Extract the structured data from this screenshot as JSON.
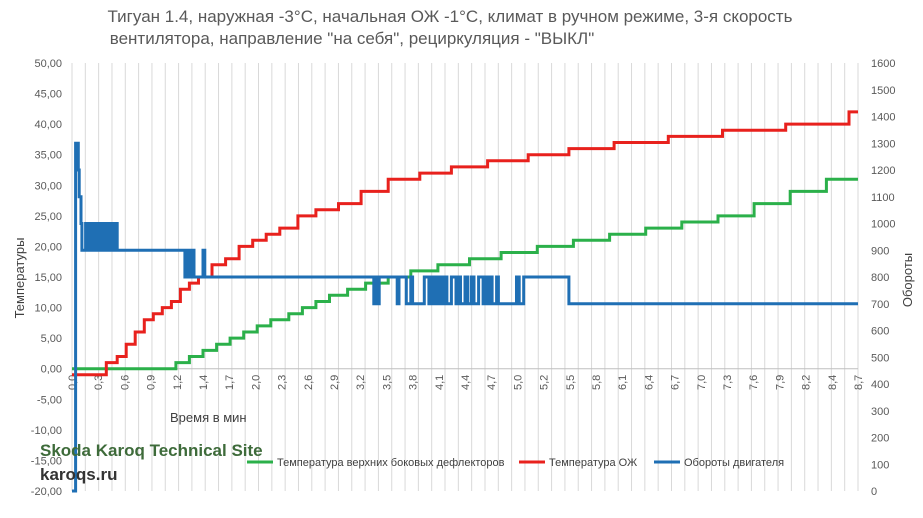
{
  "chart_data": {
    "type": "line",
    "title_line1": "Тигуан 1.4, наружная -3°С, начальная ОЖ -1°С, климат  в ручном режиме, 3-я скорость",
    "title_line2": "вентилятора, направление \"на себя\", рециркуляция - \"ВЫКЛ\"",
    "xlabel": "Время в мин",
    "ylabel_left": "Температуры",
    "ylabel_right": "Обороты",
    "xlim": [
      0.0,
      8.7
    ],
    "ylim_left": [
      -20,
      50
    ],
    "ylim_right": [
      0,
      1600
    ],
    "x_ticks": [
      "0,0",
      "0,1",
      "0,3",
      "0,4",
      "0,6",
      "0,8",
      "0,9",
      "1,0",
      "1,2",
      "1,3",
      "1,4",
      "1,6",
      "1,7",
      "1,9",
      "2,0",
      "2,2",
      "2,3",
      "2,4",
      "2,6",
      "2,7",
      "2,9",
      "3,0",
      "3,2",
      "3,3",
      "3,4",
      "3,6",
      "3,8",
      "3,9",
      "4,0",
      "4,2",
      "4,3",
      "4,4",
      "4,6",
      "4,7",
      "4,9",
      "5,0",
      "5,2",
      "5,4",
      "5,5",
      "5,7",
      "5,8",
      "6,0",
      "6,1",
      "6,2",
      "6,4",
      "6,5",
      "6,7",
      "6,8",
      "7,0",
      "7,1",
      "7,3",
      "7,4",
      "7,6",
      "7,8",
      "7,9",
      "8,1",
      "8,2",
      "8,4",
      "8,5",
      "8,7"
    ],
    "x_tick_labels": [
      "0,0",
      "0,3",
      "0,6",
      "0,9",
      "1,2",
      "1,4",
      "1,7",
      "2,0",
      "2,3",
      "2,6",
      "2,9",
      "3,2",
      "3,5",
      "3,8",
      "4,1",
      "4,4",
      "4,7",
      "5,0",
      "5,2",
      "5,5",
      "5,8",
      "6,1",
      "6,4",
      "6,7",
      "7,0",
      "7,3",
      "7,6",
      "7,9",
      "8,2",
      "8,4",
      "8,7"
    ],
    "y_left_tick_labels": [
      "-20,00",
      "-15,00",
      "-10,00",
      "-5,00",
      "0,00",
      "5,00",
      "10,00",
      "15,00",
      "20,00",
      "25,00",
      "30,00",
      "35,00",
      "40,00",
      "45,00",
      "50,00"
    ],
    "y_right_tick_labels": [
      "0",
      "100",
      "200",
      "300",
      "400",
      "500",
      "600",
      "700",
      "800",
      "900",
      "1000",
      "1100",
      "1200",
      "1300",
      "1400",
      "1500",
      "1600"
    ],
    "grid": "vertical",
    "legend_position": "bottom",
    "series": [
      {
        "name": "Температура верхних боковых дефлекторов",
        "axis": "left",
        "color": "#2bb04a",
        "x": [
          0.0,
          1.15,
          1.3,
          1.45,
          1.6,
          1.75,
          1.9,
          2.05,
          2.2,
          2.4,
          2.55,
          2.7,
          2.85,
          3.05,
          3.25,
          3.5,
          3.75,
          4.05,
          4.4,
          4.75,
          5.15,
          5.55,
          5.95,
          6.35,
          6.75,
          7.15,
          7.55,
          7.95,
          8.35,
          8.7
        ],
        "y": [
          0.0,
          1.0,
          2.0,
          3.0,
          4.0,
          5.0,
          6.0,
          7.0,
          8.0,
          9.0,
          10.0,
          11.0,
          12.0,
          13.0,
          14.0,
          15.0,
          16.0,
          17.0,
          18.0,
          19.0,
          20.0,
          21.0,
          22.0,
          23.0,
          24.0,
          25.0,
          27.0,
          29.0,
          31.0,
          31.0
        ]
      },
      {
        "name": "Температура ОЖ",
        "axis": "left",
        "color": "#e8211d",
        "x": [
          0.0,
          0.38,
          0.5,
          0.6,
          0.7,
          0.8,
          0.9,
          1.0,
          1.1,
          1.2,
          1.3,
          1.4,
          1.55,
          1.7,
          1.85,
          2.0,
          2.15,
          2.3,
          2.5,
          2.7,
          2.95,
          3.2,
          3.5,
          3.85,
          4.2,
          4.6,
          5.05,
          5.5,
          6.0,
          6.6,
          7.2,
          7.9,
          8.6,
          8.7
        ],
        "y": [
          -1.0,
          1.0,
          2.0,
          4.0,
          6.0,
          8.0,
          9.0,
          10.0,
          11.0,
          13.0,
          14.0,
          15.0,
          17.0,
          18.0,
          20.0,
          21.0,
          22.0,
          23.0,
          25.0,
          26.0,
          27.0,
          29.0,
          31.0,
          32.0,
          33.0,
          34.0,
          35.0,
          36.0,
          37.0,
          38.0,
          39.0,
          40.0,
          42.0,
          42.0
        ]
      },
      {
        "name": "Обороты двигателя",
        "axis": "right",
        "color": "#1f6fb4",
        "x": [
          0.0,
          0.04,
          0.06,
          0.07,
          0.08,
          0.1,
          0.11,
          0.12,
          0.14,
          0.15,
          0.17,
          0.2,
          0.22,
          0.24,
          0.26,
          0.28,
          0.3,
          0.32,
          0.34,
          0.36,
          0.38,
          0.4,
          0.42,
          0.44,
          0.46,
          0.48,
          0.5,
          0.6,
          0.8,
          1.0,
          1.2,
          1.25,
          1.27,
          1.3,
          1.32,
          1.35,
          1.4,
          1.45,
          1.47,
          1.5,
          1.8,
          2.2,
          2.6,
          3.0,
          3.3,
          3.34,
          3.36,
          3.38,
          3.4,
          3.5,
          3.6,
          3.62,
          3.65,
          3.7,
          3.75,
          3.77,
          3.9,
          3.95,
          3.97,
          4.0,
          4.02,
          4.05,
          4.08,
          4.1,
          4.13,
          4.15,
          4.2,
          4.25,
          4.28,
          4.3,
          4.35,
          4.38,
          4.42,
          4.45,
          4.5,
          4.55,
          4.58,
          4.6,
          4.62,
          4.65,
          4.7,
          4.72,
          4.8,
          4.9,
          4.92,
          4.95,
          5.0,
          5.5,
          6.5,
          8.7
        ],
        "y": [
          0,
          1300,
          1300,
          1200,
          1100,
          1000,
          900,
          900,
          900,
          1000,
          900,
          1000,
          900,
          1000,
          900,
          1000,
          900,
          1000,
          900,
          1000,
          900,
          1000,
          900,
          1000,
          900,
          1000,
          900,
          900,
          900,
          900,
          900,
          800,
          900,
          800,
          900,
          800,
          800,
          900,
          800,
          800,
          800,
          800,
          800,
          800,
          800,
          700,
          800,
          700,
          800,
          800,
          700,
          800,
          800,
          700,
          800,
          700,
          800,
          700,
          800,
          700,
          800,
          700,
          800,
          700,
          800,
          700,
          800,
          700,
          800,
          700,
          800,
          700,
          800,
          700,
          800,
          700,
          800,
          700,
          800,
          700,
          800,
          700,
          700,
          700,
          800,
          700,
          800,
          700,
          700,
          700
        ]
      }
    ]
  },
  "watermark": {
    "title": "Skoda Karoq Technical Site",
    "url": "karoqs.ru"
  }
}
